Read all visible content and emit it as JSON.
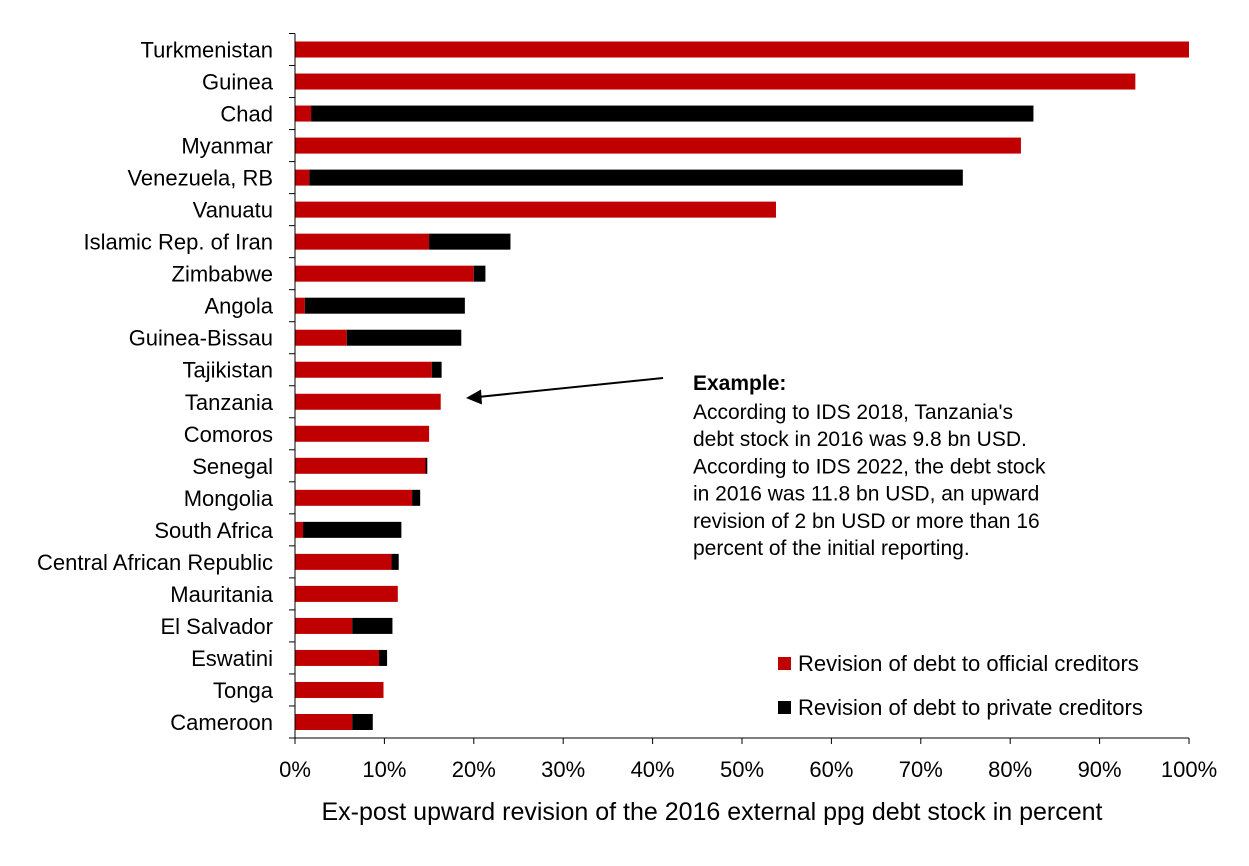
{
  "chart_data": {
    "type": "bar",
    "orientation": "horizontal",
    "stacked": true,
    "categories": [
      "Turkmenistan",
      "Guinea",
      "Chad",
      "Myanmar",
      "Venezuela, RB",
      "Vanuatu",
      "Islamic Rep. of Iran",
      "Zimbabwe",
      "Angola",
      "Guinea-Bissau",
      "Tajikistan",
      "Tanzania",
      "Comoros",
      "Senegal",
      "Mongolia",
      "South Africa",
      "Central African Republic",
      "Mauritania",
      "El Salvador",
      "Eswatini",
      "Tonga",
      "Cameroon"
    ],
    "series": [
      {
        "name": "Revision of debt to official creditors",
        "color": "#c00000",
        "values": [
          100,
          94,
          1.8,
          81.2,
          1.6,
          53.8,
          15,
          20,
          1.1,
          5.8,
          15.3,
          16.3,
          15,
          14.6,
          13.1,
          0.9,
          10.8,
          11.5,
          6.4,
          9.4,
          9.9,
          6.4
        ]
      },
      {
        "name": "Revision of debt to private creditors",
        "color": "#000000",
        "values": [
          0,
          0,
          80.8,
          0,
          73.1,
          0,
          9.1,
          1.3,
          17.9,
          12.8,
          1.1,
          0,
          0,
          0.2,
          0.9,
          11,
          0.8,
          0,
          4.5,
          0.9,
          0,
          2.3
        ]
      }
    ],
    "xlabel": "Ex-post upward revision of the 2016 external ppg debt stock in percent",
    "xlim": [
      0,
      100
    ],
    "xticks": [
      "0%",
      "10%",
      "20%",
      "30%",
      "40%",
      "50%",
      "60%",
      "70%",
      "80%",
      "90%",
      "100%"
    ],
    "grid": false,
    "legend_position": "bottom-right",
    "annotation": {
      "title": "Example:",
      "lines": [
        "According to IDS 2018, Tanzania's",
        "debt stock in 2016 was 9.8 bn USD.",
        "According to IDS 2022, the debt stock",
        "in 2016 was 11.8 bn USD, an upward",
        "revision of 2 bn USD or more than 16",
        "percent of the initial reporting."
      ],
      "target_category": "Tanzania"
    }
  }
}
